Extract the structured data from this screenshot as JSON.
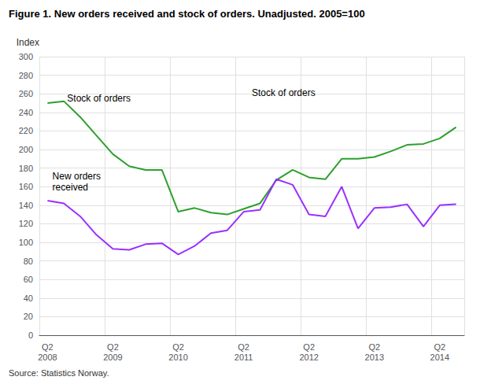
{
  "chart_data": {
    "type": "line",
    "title": "Figure 1. New orders received and stock of orders. Unadjusted. 2005=100",
    "ylabel": "Index",
    "source": "Source: Statistics Norway.",
    "annotations": [
      "Stock of orders",
      "Stock of orders",
      "New orders\nreceived"
    ],
    "categories": [
      "Q2\n2008",
      null,
      null,
      null,
      "Q2\n2009",
      null,
      null,
      null,
      "Q2\n2010",
      null,
      null,
      null,
      "Q2\n2011",
      null,
      null,
      null,
      "Q2\n2012",
      null,
      null,
      null,
      "Q2\n2013",
      null,
      null,
      null,
      "Q2\n2014",
      null
    ],
    "series": [
      {
        "color": "#2ca02c",
        "values": [
          250,
          252,
          235,
          215,
          195,
          182,
          178,
          178,
          133,
          137,
          132,
          130,
          136,
          142,
          167,
          178,
          170,
          168,
          190,
          190,
          192,
          198,
          205,
          206,
          212,
          224
        ]
      },
      {
        "color": "#9b30ff",
        "values": [
          145,
          142,
          128,
          108,
          93,
          92,
          98,
          99,
          87,
          96,
          110,
          113,
          133,
          135,
          168,
          162,
          130,
          128,
          160,
          115,
          137,
          138,
          141,
          117,
          140,
          141
        ]
      }
    ],
    "ylim": [
      0,
      300
    ],
    "yticks": [
      0,
      20,
      40,
      60,
      80,
      100,
      120,
      140,
      160,
      180,
      200,
      220,
      240,
      260,
      280,
      300
    ],
    "grid": true
  }
}
